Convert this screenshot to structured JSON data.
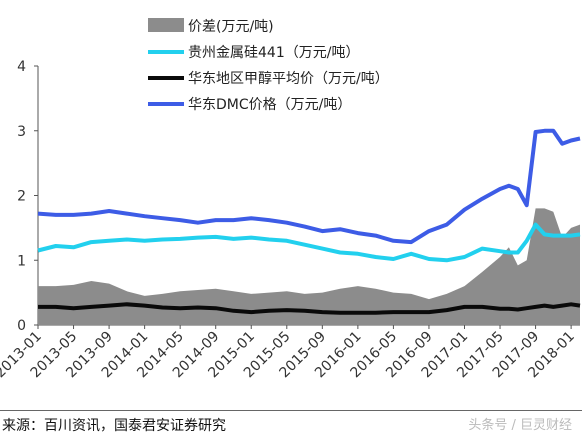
{
  "chart_data": {
    "type": "line",
    "title": "",
    "xlabel": "",
    "ylabel": "",
    "ylim": [
      0,
      4
    ],
    "yticks": [
      "0",
      "1",
      "2",
      "3",
      "4"
    ],
    "xticks": [
      "2013-01",
      "2013-05",
      "2013-09",
      "2014-01",
      "2014-05",
      "2014-09",
      "2015-01",
      "2015-05",
      "2015-09",
      "2016-01",
      "2016-05",
      "2016-09",
      "2017-01",
      "2017-05",
      "2017-09",
      "2018-01"
    ],
    "legend_position": "top",
    "x": [
      "2013-01",
      "2013-03",
      "2013-05",
      "2013-07",
      "2013-09",
      "2013-11",
      "2014-01",
      "2014-03",
      "2014-05",
      "2014-07",
      "2014-09",
      "2014-11",
      "2015-01",
      "2015-03",
      "2015-05",
      "2015-07",
      "2015-09",
      "2015-11",
      "2016-01",
      "2016-03",
      "2016-05",
      "2016-07",
      "2016-09",
      "2016-11",
      "2017-01",
      "2017-03",
      "2017-05",
      "2017-06",
      "2017-07",
      "2017-08",
      "2017-09",
      "2017-10",
      "2017-11",
      "2017-12",
      "2018-01",
      "2018-02"
    ],
    "series": [
      {
        "name": "价差(万元/吨)",
        "kind": "area",
        "color": "#8c8c8c",
        "values": [
          0.6,
          0.6,
          0.62,
          0.68,
          0.64,
          0.52,
          0.45,
          0.48,
          0.52,
          0.54,
          0.56,
          0.52,
          0.48,
          0.5,
          0.52,
          0.48,
          0.5,
          0.56,
          0.6,
          0.56,
          0.5,
          0.48,
          0.4,
          0.48,
          0.6,
          0.82,
          1.05,
          1.2,
          0.92,
          1.0,
          1.8,
          1.8,
          1.75,
          1.35,
          1.5,
          1.55
        ]
      },
      {
        "name": "贵州金属硅441（万元/吨）",
        "kind": "line",
        "color": "#22d0ee",
        "values": [
          1.15,
          1.22,
          1.2,
          1.28,
          1.3,
          1.32,
          1.3,
          1.32,
          1.33,
          1.35,
          1.36,
          1.33,
          1.35,
          1.32,
          1.3,
          1.24,
          1.18,
          1.12,
          1.1,
          1.05,
          1.02,
          1.1,
          1.02,
          1.0,
          1.05,
          1.18,
          1.14,
          1.12,
          1.12,
          1.3,
          1.55,
          1.4,
          1.38,
          1.38,
          1.38,
          1.4
        ]
      },
      {
        "name": "华东地区甲醇平均价（万元/吨）",
        "kind": "line",
        "color": "#0a0a0a",
        "values": [
          0.28,
          0.28,
          0.26,
          0.28,
          0.3,
          0.32,
          0.3,
          0.27,
          0.26,
          0.27,
          0.26,
          0.22,
          0.2,
          0.22,
          0.23,
          0.22,
          0.2,
          0.19,
          0.19,
          0.19,
          0.2,
          0.2,
          0.2,
          0.23,
          0.28,
          0.28,
          0.25,
          0.25,
          0.24,
          0.26,
          0.28,
          0.3,
          0.28,
          0.3,
          0.32,
          0.3
        ]
      },
      {
        "name": "华东DMC价格（万元/吨）",
        "kind": "line",
        "color": "#3d5ce6",
        "values": [
          1.72,
          1.7,
          1.7,
          1.72,
          1.76,
          1.72,
          1.68,
          1.65,
          1.62,
          1.58,
          1.62,
          1.62,
          1.65,
          1.62,
          1.58,
          1.52,
          1.45,
          1.48,
          1.42,
          1.38,
          1.3,
          1.28,
          1.45,
          1.55,
          1.78,
          1.95,
          2.1,
          2.15,
          2.1,
          1.85,
          2.98,
          3.0,
          3.0,
          2.8,
          2.85,
          2.88
        ]
      }
    ]
  },
  "source_text": "来源：百川资讯，国泰君安证券研究",
  "watermark_text": "头条号 / 巨灵财经"
}
